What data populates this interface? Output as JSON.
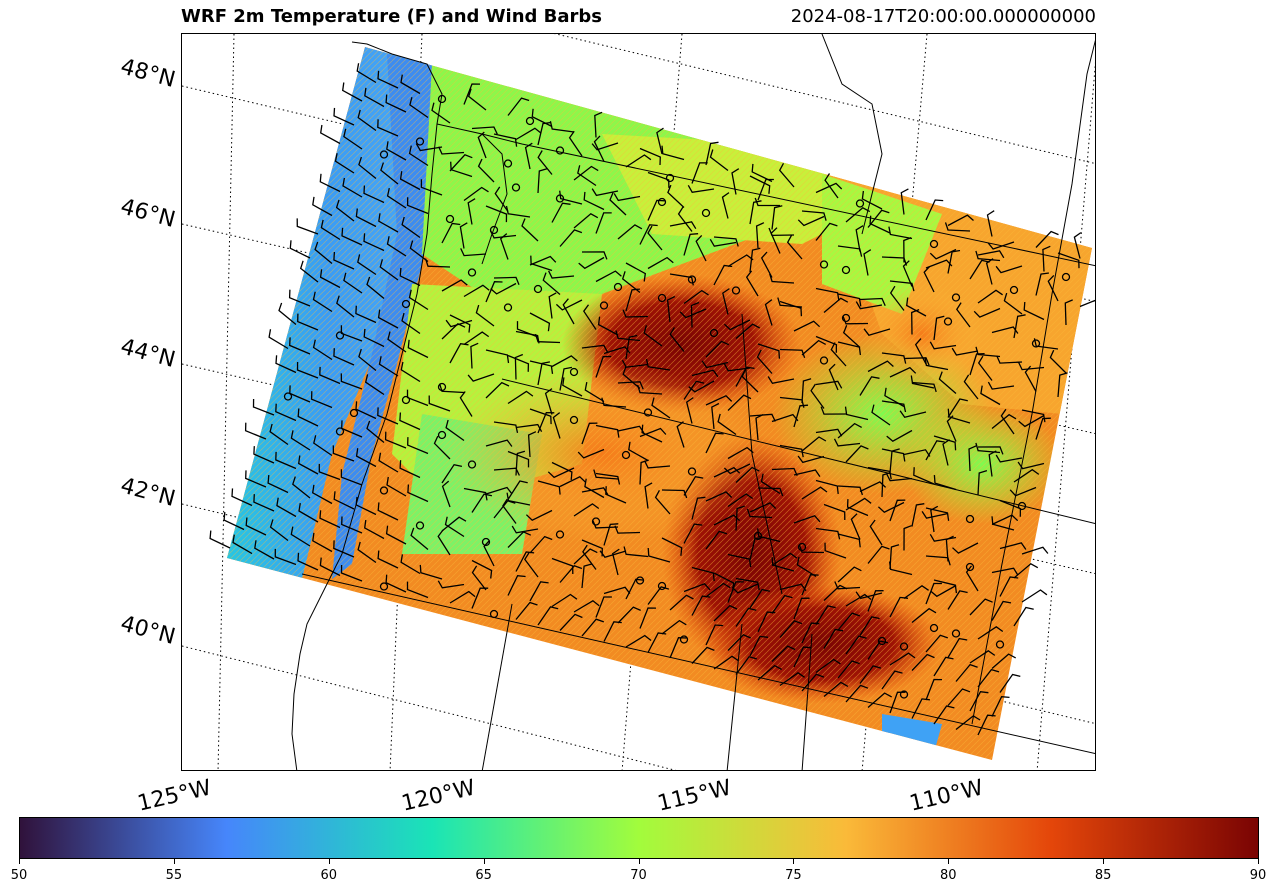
{
  "title": "WRF 2m Temperature (F) and Wind Barbs",
  "timestamp": "2024-08-17T20:00:00.000000000",
  "map": {
    "lat_labels": [
      "48°N",
      "46°N",
      "44°N",
      "42°N",
      "40°N"
    ],
    "lon_labels": [
      "125°W",
      "120°W",
      "115°W",
      "110°W"
    ]
  },
  "colorbar": {
    "min": 50,
    "max": 90,
    "ticks": [
      "50",
      "55",
      "60",
      "65",
      "70",
      "75",
      "80",
      "85",
      "90"
    ],
    "colormap": "turbo",
    "colors": [
      "#30123b",
      "#4686fb",
      "#1ae4b6",
      "#a2fc3c",
      "#faba39",
      "#e4460a",
      "#7a0403"
    ]
  }
}
